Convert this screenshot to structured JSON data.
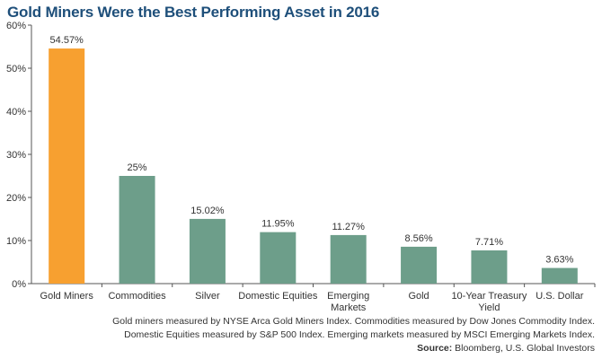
{
  "chart_data": {
    "type": "bar",
    "title": "Gold Miners Were the Best Performing Asset in 2016",
    "categories": [
      "Gold Miners",
      "Commodities",
      "Silver",
      "Domestic Equities",
      "Emerging Markets",
      "Gold",
      "10-Year Treasury Yield",
      "U.S. Dollar"
    ],
    "category_lines": [
      [
        "Gold Miners"
      ],
      [
        "Commodities"
      ],
      [
        "Silver"
      ],
      [
        "Domestic Equities"
      ],
      [
        "Emerging",
        "Markets"
      ],
      [
        "Gold"
      ],
      [
        "10-Year Treasury",
        "Yield"
      ],
      [
        "U.S. Dollar"
      ]
    ],
    "values": [
      54.57,
      25,
      15.02,
      11.95,
      11.27,
      8.56,
      7.71,
      3.63
    ],
    "value_labels": [
      "54.57%",
      "25%",
      "15.02%",
      "11.95%",
      "11.27%",
      "8.56%",
      "7.71%",
      "3.63%"
    ],
    "ylim": [
      0,
      60
    ],
    "yticks": [
      0,
      10,
      20,
      30,
      40,
      50,
      60
    ],
    "ytick_labels": [
      "0%",
      "10%",
      "20%",
      "30%",
      "40%",
      "50%",
      "60%"
    ],
    "xlabel": "",
    "ylabel": "",
    "grid": false,
    "highlight_color": "#f7a030",
    "bar_color": "#6d9e8a"
  },
  "notes": {
    "line1": "Gold miners measured by NYSE Arca Gold Miners Index. Commodities measured by Dow Jones Commodity Index.",
    "line2": "Domestic Equities measured by S&P 500 Index. Emerging markets measured by MSCI Emerging Markets Index.",
    "source_label": "Source:",
    "source_text": " Bloomberg, U.S. Global Investors"
  }
}
